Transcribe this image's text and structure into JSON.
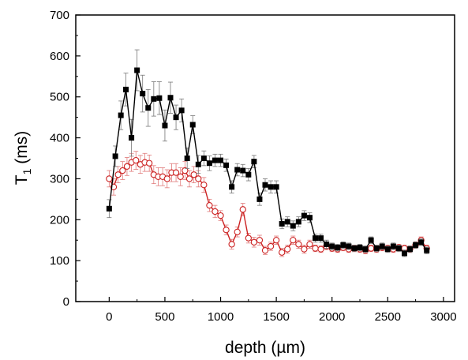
{
  "chart_data": {
    "type": "scatter",
    "title": "",
    "xlabel": "depth (µm)",
    "ylabel_main": "T",
    "ylabel_sub": "1",
    "ylabel_unit": " (ms)",
    "xlim": [
      -300,
      3100
    ],
    "ylim": [
      0,
      700
    ],
    "xticks": [
      0,
      500,
      1000,
      1500,
      2000,
      2500,
      3000
    ],
    "yticks": [
      0,
      100,
      200,
      300,
      400,
      500,
      600,
      700
    ],
    "grid": false,
    "legend": "none",
    "series": [
      {
        "color": "#000000",
        "marker": "filled-square",
        "points": [
          [
            0,
            227,
            22
          ],
          [
            55,
            355,
            25
          ],
          [
            105,
            455,
            35
          ],
          [
            150,
            518,
            40
          ],
          [
            200,
            400,
            45
          ],
          [
            250,
            565,
            50
          ],
          [
            300,
            508,
            45
          ],
          [
            350,
            473,
            45
          ],
          [
            400,
            495,
            42
          ],
          [
            450,
            497,
            40
          ],
          [
            500,
            430,
            38
          ],
          [
            550,
            498,
            38
          ],
          [
            600,
            450,
            30
          ],
          [
            650,
            467,
            28
          ],
          [
            700,
            350,
            25
          ],
          [
            750,
            432,
            22
          ],
          [
            800,
            335,
            22
          ],
          [
            850,
            350,
            18
          ],
          [
            900,
            338,
            18
          ],
          [
            950,
            345,
            15
          ],
          [
            1000,
            345,
            15
          ],
          [
            1050,
            333,
            15
          ],
          [
            1100,
            280,
            15
          ],
          [
            1150,
            322,
            15
          ],
          [
            1200,
            320,
            15
          ],
          [
            1250,
            310,
            15
          ],
          [
            1300,
            342,
            15
          ],
          [
            1350,
            250,
            15
          ],
          [
            1400,
            285,
            15
          ],
          [
            1450,
            280,
            15
          ],
          [
            1500,
            280,
            15
          ],
          [
            1550,
            190,
            12
          ],
          [
            1600,
            195,
            12
          ],
          [
            1650,
            185,
            12
          ],
          [
            1700,
            195,
            12
          ],
          [
            1750,
            210,
            12
          ],
          [
            1800,
            205,
            12
          ],
          [
            1850,
            155,
            10
          ],
          [
            1900,
            155,
            10
          ],
          [
            1950,
            140,
            10
          ],
          [
            2000,
            135,
            8
          ],
          [
            2050,
            132,
            8
          ],
          [
            2100,
            138,
            8
          ],
          [
            2150,
            135,
            8
          ],
          [
            2200,
            130,
            8
          ],
          [
            2250,
            132,
            8
          ],
          [
            2300,
            128,
            8
          ],
          [
            2350,
            150,
            8
          ],
          [
            2400,
            130,
            8
          ],
          [
            2450,
            135,
            8
          ],
          [
            2500,
            128,
            8
          ],
          [
            2550,
            135,
            8
          ],
          [
            2600,
            130,
            8
          ],
          [
            2650,
            118,
            8
          ],
          [
            2700,
            128,
            8
          ],
          [
            2750,
            138,
            8
          ],
          [
            2800,
            145,
            8
          ],
          [
            2850,
            125,
            8
          ]
        ]
      },
      {
        "color": "#cc2222",
        "marker": "open-circle",
        "points": [
          [
            0,
            300,
            20
          ],
          [
            40,
            280,
            20
          ],
          [
            80,
            310,
            20
          ],
          [
            120,
            320,
            22
          ],
          [
            160,
            330,
            22
          ],
          [
            200,
            340,
            22
          ],
          [
            240,
            345,
            22
          ],
          [
            280,
            335,
            22
          ],
          [
            320,
            340,
            22
          ],
          [
            360,
            338,
            20
          ],
          [
            400,
            310,
            22
          ],
          [
            440,
            305,
            22
          ],
          [
            480,
            305,
            22
          ],
          [
            520,
            300,
            22
          ],
          [
            560,
            315,
            22
          ],
          [
            600,
            315,
            22
          ],
          [
            640,
            305,
            22
          ],
          [
            680,
            320,
            22
          ],
          [
            720,
            300,
            20
          ],
          [
            760,
            310,
            20
          ],
          [
            800,
            300,
            20
          ],
          [
            850,
            285,
            18
          ],
          [
            900,
            235,
            15
          ],
          [
            950,
            220,
            15
          ],
          [
            1000,
            210,
            12
          ],
          [
            1050,
            175,
            12
          ],
          [
            1100,
            140,
            12
          ],
          [
            1150,
            170,
            12
          ],
          [
            1200,
            225,
            15
          ],
          [
            1250,
            155,
            12
          ],
          [
            1300,
            145,
            12
          ],
          [
            1350,
            150,
            12
          ],
          [
            1400,
            125,
            10
          ],
          [
            1450,
            135,
            10
          ],
          [
            1500,
            150,
            10
          ],
          [
            1550,
            120,
            10
          ],
          [
            1600,
            128,
            10
          ],
          [
            1650,
            150,
            10
          ],
          [
            1700,
            140,
            10
          ],
          [
            1750,
            128,
            10
          ],
          [
            1800,
            140,
            10
          ],
          [
            1850,
            130,
            8
          ],
          [
            1900,
            128,
            8
          ],
          [
            1950,
            135,
            8
          ],
          [
            2000,
            130,
            8
          ],
          [
            2050,
            128,
            8
          ],
          [
            2100,
            132,
            8
          ],
          [
            2150,
            128,
            8
          ],
          [
            2200,
            130,
            8
          ],
          [
            2250,
            128,
            8
          ],
          [
            2300,
            125,
            8
          ],
          [
            2350,
            130,
            8
          ],
          [
            2400,
            128,
            8
          ],
          [
            2450,
            132,
            8
          ],
          [
            2500,
            130,
            8
          ],
          [
            2550,
            128,
            8
          ],
          [
            2600,
            132,
            8
          ],
          [
            2650,
            130,
            8
          ],
          [
            2700,
            128,
            8
          ],
          [
            2750,
            138,
            8
          ],
          [
            2800,
            150,
            8
          ],
          [
            2850,
            130,
            8
          ]
        ]
      }
    ]
  }
}
